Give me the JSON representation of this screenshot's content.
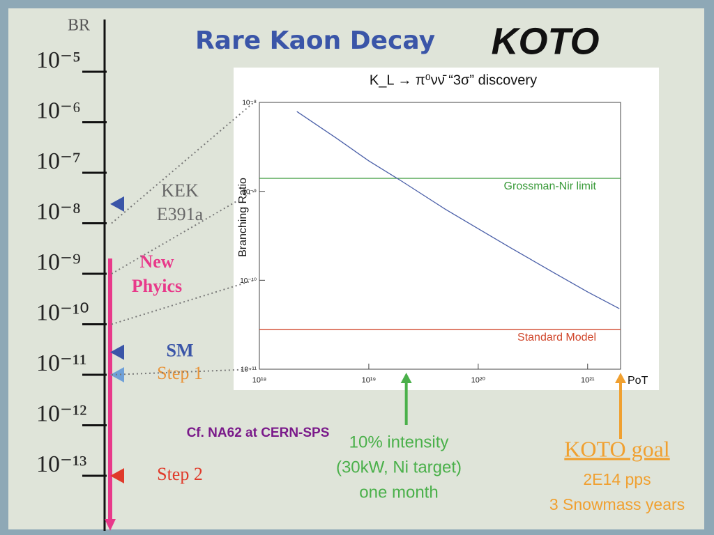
{
  "slide": {
    "title": "Rare Kaon Decay",
    "logo": "KOTO",
    "br_axis": {
      "label": "BR",
      "ticks": [
        {
          "value": 1e-05,
          "label": "10⁻⁵"
        },
        {
          "value": 1e-06,
          "label": "10⁻⁶"
        },
        {
          "value": 1e-07,
          "label": "10⁻⁷"
        },
        {
          "value": 1e-08,
          "label": "10⁻⁸"
        },
        {
          "value": 1e-09,
          "label": "10⁻⁹"
        },
        {
          "value": 1e-10,
          "label": "10⁻¹⁰"
        },
        {
          "value": 1e-11,
          "label": "10⁻¹¹"
        },
        {
          "value": 1e-12,
          "label": "10⁻¹²"
        },
        {
          "value": 1e-13,
          "label": "10⁻¹³"
        }
      ]
    },
    "markers": [
      {
        "lines": [
          "KEK",
          "E391a"
        ],
        "value": 2.4e-08,
        "color": "#3a55a8",
        "text_color": "#666666"
      },
      {
        "lines": [
          "SM"
        ],
        "value": 2.8e-11,
        "color": "#3a55a8",
        "text_color": "#3a55a8"
      },
      {
        "lines": [
          "Step 1"
        ],
        "value": 1e-11,
        "color": "#6fa0d8",
        "text_color": "#e8943a"
      },
      {
        "lines": [
          "Step 2"
        ],
        "value": 1e-13,
        "color": "#e03a2a",
        "text_color": "#e03a2a"
      }
    ],
    "new_physics": {
      "lines": [
        "New",
        "Phyics"
      ],
      "from": 2e-09,
      "color": "#e8398a"
    },
    "note": "Cf. NA62 at CERN-SPS",
    "intensity": [
      "10% intensity",
      "(30kW, Ni target)",
      "one month"
    ],
    "goal": {
      "title": "KOTO goal",
      "lines": [
        "2E14 pps",
        "3 Snowmass years"
      ]
    }
  },
  "chart_data": {
    "type": "line",
    "title": "K_L → π⁰νν̄   “3σ” discovery",
    "xlabel": "PoT",
    "ylabel": "Branching Ratio",
    "log_x": true,
    "log_y": true,
    "xlim": [
      1e+18,
      2e+21
    ],
    "ylim": [
      1e-11,
      1e-08
    ],
    "xticks": [
      {
        "value": 1e+18,
        "label": "10¹⁸"
      },
      {
        "value": 1e+19,
        "label": "10¹⁹"
      },
      {
        "value": 1e+20,
        "label": "10²⁰"
      },
      {
        "value": 1e+21,
        "label": "10²¹"
      }
    ],
    "yticks": [
      {
        "value": 1e-11,
        "label": "10⁻¹¹"
      },
      {
        "value": 1e-10,
        "label": "10⁻¹⁰"
      },
      {
        "value": 1e-09,
        "label": "10⁻⁹"
      },
      {
        "value": 1e-08,
        "label": "10⁻⁸"
      }
    ],
    "x": [
      2.2e+18,
      5e+18,
      1e+19,
      2e+19,
      5e+19,
      1e+20,
      2e+20,
      5e+20,
      1e+21,
      1.95e+21
    ],
    "series": [
      {
        "color": "#4a5fa8",
        "values": [
          7.9e-09,
          4e-09,
          2.2e-09,
          1.3e-09,
          6.3e-10,
          3.8e-10,
          2.3e-10,
          1.2e-10,
          7.4e-11,
          4.8e-11
        ]
      }
    ],
    "hlines": [
      {
        "name": "Grossman-Nir limit",
        "value": 1.4e-09,
        "color": "#3a9a3a"
      },
      {
        "name": "Standard Model",
        "value": 2.8e-11,
        "color": "#d0452a"
      }
    ],
    "arrows": [
      {
        "x": 2.2e+19,
        "color": "#4ab04a"
      },
      {
        "x": 2e+21,
        "color": "#f0a030"
      }
    ]
  }
}
